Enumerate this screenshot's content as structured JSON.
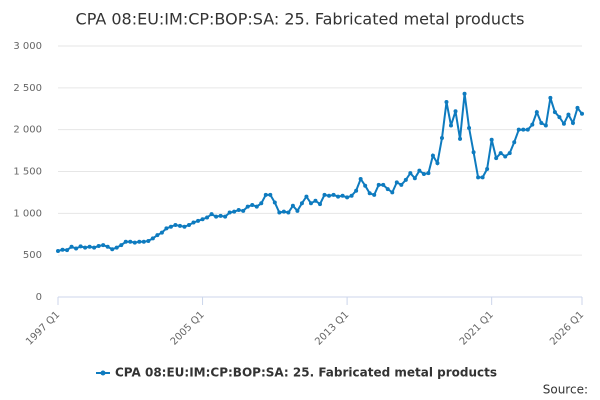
{
  "chart_data": {
    "type": "line",
    "title": "CPA 08:EU:IM:CP:BOP:SA: 25. Fabricated metal products",
    "source": "Source:",
    "categories": [
      "1997 Q1",
      null,
      null,
      null,
      null,
      null,
      null,
      null,
      null,
      null,
      null,
      null,
      null,
      null,
      null,
      null,
      null,
      null,
      null,
      null,
      null,
      null,
      null,
      null,
      null,
      null,
      null,
      null,
      null,
      null,
      null,
      null,
      "2005 Q1",
      null,
      null,
      null,
      null,
      null,
      null,
      null,
      null,
      null,
      null,
      null,
      null,
      null,
      null,
      null,
      null,
      null,
      null,
      null,
      null,
      null,
      null,
      null,
      null,
      null,
      null,
      null,
      null,
      null,
      null,
      null,
      "2013 Q1",
      null,
      null,
      null,
      null,
      null,
      null,
      null,
      null,
      null,
      null,
      null,
      null,
      null,
      null,
      null,
      null,
      null,
      null,
      null,
      null,
      null,
      null,
      null,
      null,
      null,
      null,
      null,
      null,
      null,
      null,
      null,
      "2021 Q1",
      null,
      null,
      null,
      null,
      null,
      null,
      null,
      null,
      null,
      null,
      null,
      null,
      null,
      null,
      null,
      null,
      null,
      null,
      null,
      "2026 Q1"
    ],
    "series": [
      {
        "name": "CPA 08:EU:IM:CP:BOP:SA: 25. Fabricated metal products",
        "color": "#0e7bbf",
        "values": [
          550,
          565,
          560,
          600,
          580,
          605,
          590,
          600,
          590,
          610,
          620,
          600,
          570,
          590,
          620,
          660,
          660,
          650,
          660,
          660,
          670,
          700,
          740,
          770,
          820,
          840,
          860,
          850,
          840,
          860,
          890,
          910,
          930,
          950,
          990,
          960,
          970,
          960,
          1010,
          1020,
          1040,
          1030,
          1080,
          1100,
          1080,
          1120,
          1220,
          1220,
          1130,
          1010,
          1020,
          1010,
          1090,
          1030,
          1120,
          1200,
          1120,
          1150,
          1110,
          1220,
          1210,
          1220,
          1200,
          1210,
          1190,
          1210,
          1270,
          1410,
          1330,
          1240,
          1220,
          1340,
          1340,
          1290,
          1250,
          1370,
          1340,
          1400,
          1480,
          1420,
          1510,
          1470,
          1480,
          1690,
          1600,
          1900,
          2330,
          2050,
          2220,
          1890,
          2430,
          2020,
          1730,
          1430,
          1430,
          1530,
          1880,
          1660,
          1720,
          1680,
          1720,
          1850,
          2000,
          2000,
          2000,
          2060,
          2210,
          2080,
          2050,
          2380,
          2210,
          2150,
          2070,
          2180,
          2080,
          2260,
          2190
        ]
      }
    ],
    "ylim": [
      0,
      3000
    ],
    "yticks": [
      0,
      500,
      {
        "value": 1000,
        "label": "1 000"
      },
      {
        "value": 1500,
        "label": "1 500"
      },
      {
        "value": 2000,
        "label": "2 000"
      },
      {
        "value": 2500,
        "label": "2 500"
      },
      {
        "value": 3000,
        "label": "3 000"
      }
    ],
    "grid": true
  }
}
